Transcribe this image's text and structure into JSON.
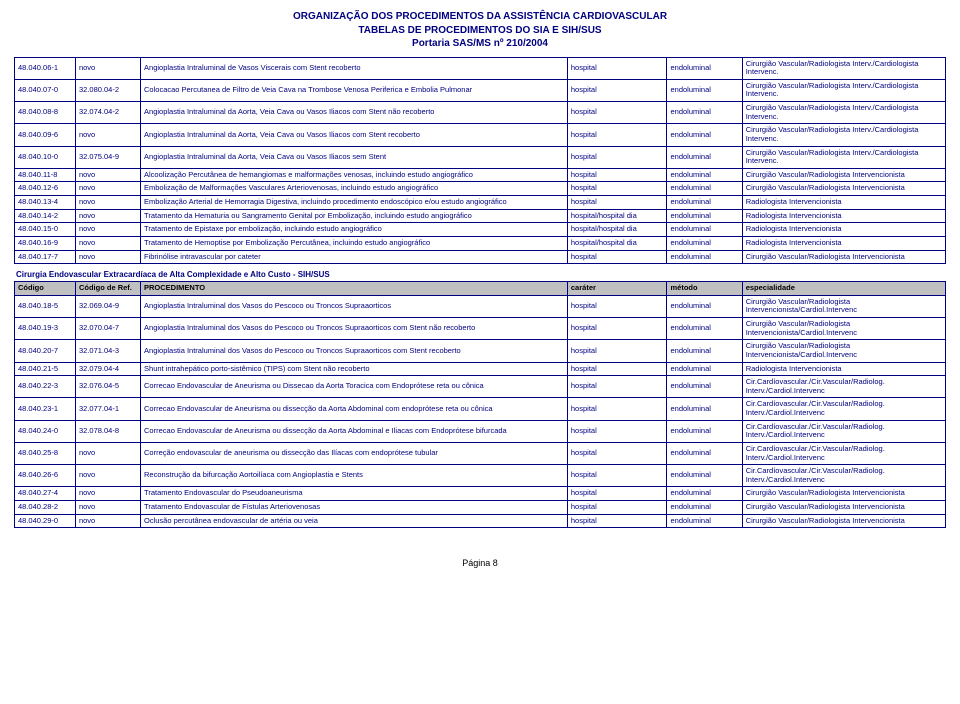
{
  "title": {
    "line1": "ORGANIZAÇÃO DOS PROCEDIMENTOS DA ASSISTÊNCIA CARDIOVASCULAR",
    "line2": "TABELAS DE PROCEDIMENTOS DO SIA E SIH/SUS",
    "line3": "Portaria SAS/MS nº 210/2004"
  },
  "rows1": [
    {
      "c": "48.040.06-1",
      "r": "novo",
      "p": "Angioplastia Intraluminal de Vasos Viscerais com Stent recoberto",
      "car": "hospital",
      "met": "endoluminal",
      "esp": "Cirurgião Vascular/Radiologista Interv./Cardiologista Intervenc."
    },
    {
      "c": "48.040.07-0",
      "r": "32.080.04-2",
      "p": "Colocacao Percutanea de Filtro de Veia Cava na Trombose Venosa Periferica e Embolia Pulmonar",
      "car": "hospital",
      "met": "endoluminal",
      "esp": "Cirurgião Vascular/Radiologista Interv./Cardiologista Intervenc."
    },
    {
      "c": "48.040.08-8",
      "r": "32.074.04-2",
      "p": "Angioplastia Intraluminal da Aorta, Veia Cava ou Vasos Iliacos com Stent não recoberto",
      "car": "hospital",
      "met": "endoluminal",
      "esp": "Cirurgião Vascular/Radiologista Interv./Cardiologista Intervenc."
    },
    {
      "c": "48.040.09-6",
      "r": "novo",
      "p": "Angioplastia Intraluminal da Aorta, Veia Cava ou Vasos Iliacos com Stent recoberto",
      "car": "hospital",
      "met": "endoluminal",
      "esp": "Cirurgião Vascular/Radiologista Interv./Cardiologista Intervenc."
    },
    {
      "c": "48.040.10-0",
      "r": "32.075.04-9",
      "p": "Angioplastia Intraluminal da Aorta, Veia Cava ou Vasos Iliacos sem Stent",
      "car": "hospital",
      "met": "endoluminal",
      "esp": "Cirurgião Vascular/Radiologista Interv./Cardiologista Intervenc."
    },
    {
      "c": "48.040.11-8",
      "r": "novo",
      "p": "Alcoolização Percutânea de hemangiomas e malformações venosas, incluindo estudo angiográfico",
      "car": "hospital",
      "met": "endoluminal",
      "esp": "Cirurgião Vascular/Radiologista Intervencionista"
    },
    {
      "c": "48.040.12-6",
      "r": "novo",
      "p": "Embolização de Malformações Vasculares Arteriovenosas, incluindo estudo angiográfico",
      "car": "hospital",
      "met": "endoluminal",
      "esp": "Cirurgião Vascular/Radiologista Intervencionista"
    },
    {
      "c": "48.040.13-4",
      "r": "novo",
      "p": "Embolização Arterial de Hemorragia Digestiva, incluindo procedimento endoscópico e/ou estudo angiográfico",
      "car": "hospital",
      "met": "endoluminal",
      "esp": "Radiologista Intervencionista"
    },
    {
      "c": "48.040.14-2",
      "r": "novo",
      "p": "Tratamento da Hematuria ou Sangramento Genital por Embolização, incluindo estudo angiográfico",
      "car": "hospital/hospital dia",
      "met": "endoluminal",
      "esp": "Radiologista Intervencionista"
    },
    {
      "c": "48.040.15-0",
      "r": "novo",
      "p": "Tratamento de Epistaxe por embolização, incluindo estudo angiográfico",
      "car": "hospital/hospital dia",
      "met": "endoluminal",
      "esp": "Radiologista Intervencionista"
    },
    {
      "c": "48.040.16-9",
      "r": "novo",
      "p": "Tratamento de Hemoptise por Embolização Percutânea, incluindo estudo angiográfico",
      "car": "hospital/hospital dia",
      "met": "endoluminal",
      "esp": "Radiologista Intervencionista"
    },
    {
      "c": "48.040.17-7",
      "r": "novo",
      "p": "Fibrinólise intravascular por cateter",
      "car": "hospital",
      "met": "endoluminal",
      "esp": "Cirurgião Vascular/Radiologista Intervencionista"
    }
  ],
  "section2": "Cirurgia Endovascular Extracardíaca de Alta Complexidade e Alto Custo - SIH/SUS",
  "headers": {
    "c": "Código",
    "r": "Código de Ref.",
    "p": "PROCEDIMENTO",
    "car": "caráter",
    "met": "método",
    "esp": "especialidade"
  },
  "rows2": [
    {
      "c": "48.040.18-5",
      "r": "32.069.04-9",
      "p": "Angioplastia Intraluminal dos Vasos do Pescoco ou Troncos Supraaorticos",
      "car": "hospital",
      "met": "endoluminal",
      "esp": "Cirurgião Vascular/Radiologista Intervencionista/Cardiol.Intervenc"
    },
    {
      "c": "48.040.19-3",
      "r": "32.070.04-7",
      "p": "Angioplastia Intraluminal dos Vasos do Pescoco ou Troncos Supraaorticos com Stent não recoberto",
      "car": "hospital",
      "met": "endoluminal",
      "esp": "Cirurgião Vascular/Radiologista Intervencionista/Cardiol.Intervenc"
    },
    {
      "c": "48.040.20-7",
      "r": "32.071.04-3",
      "p": "Angioplastia Intraluminal dos Vasos do Pescoco ou Troncos Supraaorticos com Stent recoberto",
      "car": "hospital",
      "met": "endoluminal",
      "esp": "Cirurgião Vascular/Radiologista Intervencionista/Cardiol.Intervenc"
    },
    {
      "c": "48.040.21-5",
      "r": "32.079.04-4",
      "p": "Shunt intrahepático porto-sistêmico (TIPS) com Stent não recoberto",
      "car": "hospital",
      "met": "endoluminal",
      "esp": "Radiologista Intervencionista"
    },
    {
      "c": "48.040.22-3",
      "r": "32.076.04-5",
      "p": "Correcao Endovascular de Aneurisma ou Dissecao da Aorta Toracica com Endoprótese reta ou cônica",
      "car": "hospital",
      "met": "endoluminal",
      "esp": "Cir.Cardíovascular./Cir.Vascular/Radiolog. Interv./Cardiol.Intervenc"
    },
    {
      "c": "48.040.23-1",
      "r": "32.077.04-1",
      "p": "Correcao Endovascular de Aneurisma ou dissecção da Aorta Abdominal com endoprótese reta ou cônica",
      "car": "hospital",
      "met": "endoluminal",
      "esp": "Cir.Cardíovascular./Cir.Vascular/Radiolog. Interv./Cardiol.Intervenc"
    },
    {
      "c": "48.040.24-0",
      "r": "32.078.04-8",
      "p": "Correcao Endovascular de Aneurisma ou dissecção da Aorta Abdominal e Iliacas com Endoprótese bifurcada",
      "car": "hospital",
      "met": "endoluminal",
      "esp": "Cir.Cardíovascular./Cir.Vascular/Radiolog. Interv./Cardiol.Intervenc"
    },
    {
      "c": "48.040.25-8",
      "r": "novo",
      "p": "Correção endovascular de aneurisma ou dissecção das Ilíacas com endoprótese tubular",
      "car": "hospital",
      "met": "endoluminal",
      "esp": "Cir.Cardíovascular./Cir.Vascular/Radiolog. Interv./Cardiol.Intervenc"
    },
    {
      "c": "48.040.26-6",
      "r": "novo",
      "p": "Reconstrução da bifurcação Aortoilíaca com Angioplastia e Stents",
      "car": "hospital",
      "met": "endoluminal",
      "esp": "Cir.Cardíovascular./Cir.Vascular/Radiolog. Interv./Cardiol.Intervenc"
    },
    {
      "c": "48.040.27-4",
      "r": "novo",
      "p": "Tratamento Endovascular do Pseudoaneurisma",
      "car": "hospital",
      "met": "endoluminal",
      "esp": "Cirurgião Vascular/Radiologista Intervencionista"
    },
    {
      "c": "48.040.28-2",
      "r": "novo",
      "p": "Tratamento Endovascular de Fístulas Arteriovenosas",
      "car": "hospital",
      "met": "endoluminal",
      "esp": "Cirurgião Vascular/Radiologista Intervencionista"
    },
    {
      "c": "48.040.29-0",
      "r": "novo",
      "p": "Oclusão percutânea endovascular de artéria ou veia",
      "car": "hospital",
      "met": "endoluminal",
      "esp": "Cirurgião Vascular/Radiologista Intervencionista"
    }
  ],
  "footer": "Página 8"
}
